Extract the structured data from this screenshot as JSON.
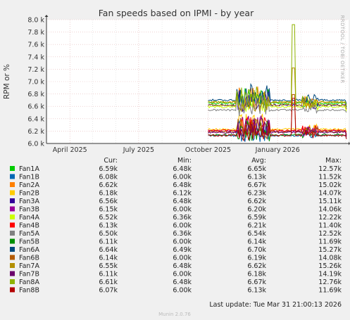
{
  "chart_data": {
    "type": "line",
    "title": "Fan speeds based on IPMI - by year",
    "ylabel": "RPM or %",
    "ylim": [
      6.0,
      8.0
    ],
    "yticks": [
      "6.0 k",
      "6.2 k",
      "6.4 k",
      "6.6 k",
      "6.8 k",
      "7.0 k",
      "7.2 k",
      "7.4 k",
      "7.6 k",
      "7.8 k",
      "8.0 k"
    ],
    "xlim": [
      "2025-03-01",
      "2026-04-05"
    ],
    "xticks": [
      {
        "date": "2025-04-01",
        "label": "April 2025"
      },
      {
        "date": "2025-07-01",
        "label": "July 2025"
      },
      {
        "date": "2025-10-01",
        "label": "October 2025"
      },
      {
        "date": "2026-01-01",
        "label": "January 2026"
      }
    ],
    "data_start": "2025-10-01",
    "grid": true,
    "columns": [
      "Cur:",
      "Min:",
      "Avg:",
      "Max:"
    ],
    "series": [
      {
        "name": "Fan1A",
        "color": "#00cc00",
        "cur": "6.59k",
        "min": "6.48k",
        "avg": "6.65k",
        "max": "12.57k"
      },
      {
        "name": "Fan1B",
        "color": "#0066b3",
        "cur": "6.08k",
        "min": "6.00k",
        "avg": "6.13k",
        "max": "11.52k"
      },
      {
        "name": "Fan2A",
        "color": "#ff8000",
        "cur": "6.62k",
        "min": "6.48k",
        "avg": "6.67k",
        "max": "15.02k"
      },
      {
        "name": "Fan2B",
        "color": "#ffcc00",
        "cur": "6.18k",
        "min": "6.12k",
        "avg": "6.23k",
        "max": "14.07k"
      },
      {
        "name": "Fan3A",
        "color": "#330099",
        "cur": "6.56k",
        "min": "6.48k",
        "avg": "6.62k",
        "max": "15.11k"
      },
      {
        "name": "Fan3B",
        "color": "#990099",
        "cur": "6.15k",
        "min": "6.00k",
        "avg": "6.20k",
        "max": "14.06k"
      },
      {
        "name": "Fan4A",
        "color": "#ccff00",
        "cur": "6.52k",
        "min": "6.36k",
        "avg": "6.59k",
        "max": "12.22k"
      },
      {
        "name": "Fan4B",
        "color": "#ff0000",
        "cur": "6.13k",
        "min": "6.00k",
        "avg": "6.21k",
        "max": "11.40k"
      },
      {
        "name": "Fan5A",
        "color": "#808080",
        "cur": "6.50k",
        "min": "6.36k",
        "avg": "6.54k",
        "max": "12.52k"
      },
      {
        "name": "Fan5B",
        "color": "#008f00",
        "cur": "6.11k",
        "min": "6.00k",
        "avg": "6.14k",
        "max": "11.69k"
      },
      {
        "name": "Fan6A",
        "color": "#00487d",
        "cur": "6.64k",
        "min": "6.49k",
        "avg": "6.70k",
        "max": "15.27k"
      },
      {
        "name": "Fan6B",
        "color": "#b35a00",
        "cur": "6.14k",
        "min": "6.00k",
        "avg": "6.19k",
        "max": "14.08k"
      },
      {
        "name": "Fan7A",
        "color": "#b38f00",
        "cur": "6.55k",
        "min": "6.48k",
        "avg": "6.62k",
        "max": "15.26k"
      },
      {
        "name": "Fan7B",
        "color": "#6b006b",
        "cur": "6.11k",
        "min": "6.00k",
        "avg": "6.18k",
        "max": "14.19k"
      },
      {
        "name": "Fan8A",
        "color": "#8fb300",
        "cur": "6.61k",
        "min": "6.48k",
        "avg": "6.67k",
        "max": "12.76k"
      },
      {
        "name": "Fan8B",
        "color": "#b30000",
        "cur": "6.07k",
        "min": "6.00k",
        "avg": "6.13k",
        "max": "11.69k"
      }
    ]
  },
  "side_label": "RRDTOOL / TOBI OETIKER",
  "footer": {
    "last_update": "Last update: Tue Mar 31 21:00:13 2026",
    "munin": "Munin 2.0.76"
  }
}
